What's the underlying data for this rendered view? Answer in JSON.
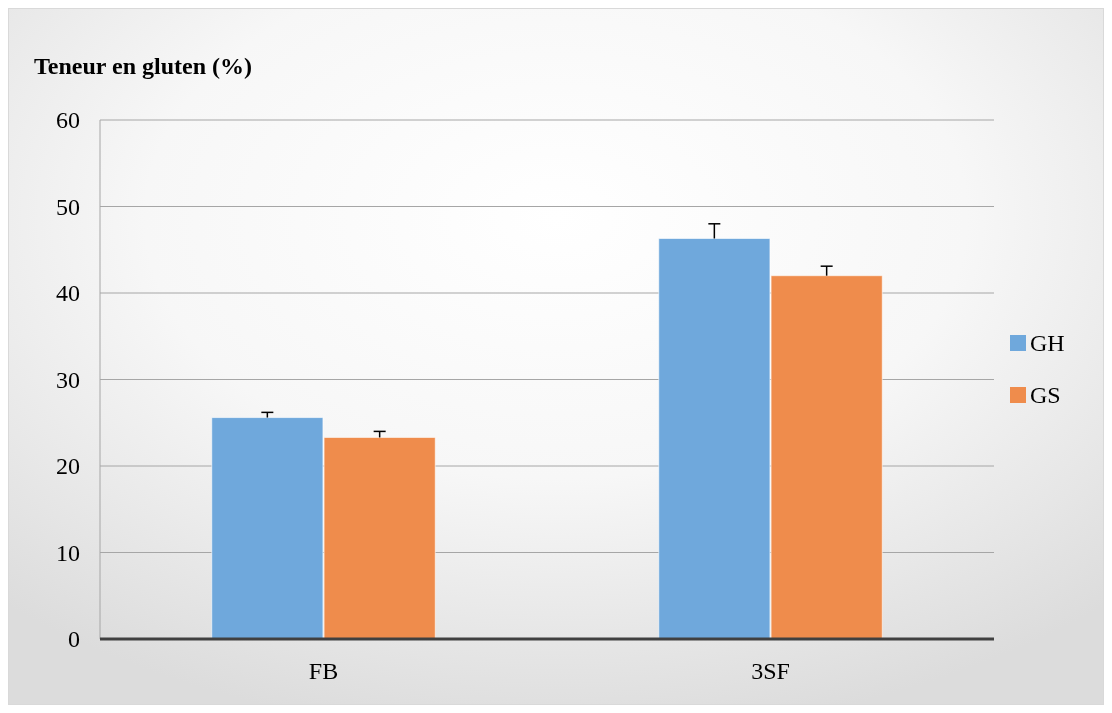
{
  "chart_data": {
    "type": "bar",
    "ylabel": "Teneur en gluten (%)",
    "categories": [
      "FB",
      "3SF"
    ],
    "series": [
      {
        "name": "GH",
        "color": "#6fa8dc",
        "values": [
          25.6,
          46.3
        ],
        "errors": [
          [
            25.6,
            26.2
          ],
          [
            46.3,
            48.0
          ]
        ]
      },
      {
        "name": "GS",
        "color": "#ef8c4c",
        "values": [
          23.3,
          42.0
        ],
        "errors": [
          [
            23.3,
            24.0
          ],
          [
            42.0,
            43.1
          ]
        ]
      }
    ],
    "ylim": [
      0,
      60
    ],
    "yticks": [
      0,
      10,
      20,
      30,
      40,
      50,
      60
    ],
    "grid": "y",
    "legend": "right"
  }
}
